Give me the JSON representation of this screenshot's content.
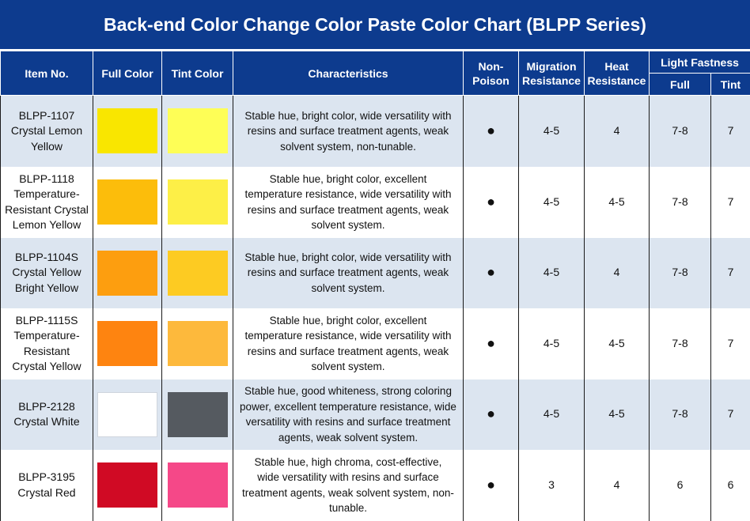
{
  "title": "Back-end Color Change Color Paste Color Chart (BLPP Series)",
  "headers": {
    "item": "Item No.",
    "full_color": "Full Color",
    "tint_color": "Tint Color",
    "characteristics": "Characteristics",
    "non_poison_1": "Non-",
    "non_poison_2": "Poison",
    "migration_1": "Migration",
    "migration_2": "Resistance",
    "heat_1": "Heat",
    "heat_2": "Resistance",
    "light": "Light Fastness",
    "light_full": "Full",
    "light_tint": "Tint"
  },
  "rows": [
    {
      "item_lines": [
        "BLPP-1107",
        "Crystal Lemon",
        "Yellow"
      ],
      "full": "#f9e600",
      "tint": "#fefe56",
      "desc_lines": [
        "Stable hue, bright color, wide versatility with",
        "resins and surface treatment agents, weak",
        "solvent system, non-tunable."
      ],
      "non_poison": "●",
      "migration": "4-5",
      "heat": "4",
      "light_full": "7-8",
      "light_tint": "7"
    },
    {
      "item_lines": [
        "BLPP-1118",
        "Temperature-",
        "Resistant Crystal",
        "Lemon Yellow"
      ],
      "full": "#fcbd0b",
      "tint": "#fdef47",
      "desc_lines": [
        "Stable hue, bright color, excellent",
        "temperature resistance, wide versatility with",
        "resins and surface treatment agents, weak",
        "solvent system."
      ],
      "non_poison": "●",
      "migration": "4-5",
      "heat": "4-5",
      "light_full": "7-8",
      "light_tint": "7"
    },
    {
      "item_lines": [
        "BLPP-1104S",
        "Crystal Yellow",
        "Bright Yellow"
      ],
      "full": "#fd9e0f",
      "tint": "#fdcb22",
      "desc_lines": [
        "Stable hue, bright color, wide versatility with",
        "resins and surface treatment agents, weak",
        "solvent system."
      ],
      "non_poison": "●",
      "migration": "4-5",
      "heat": "4",
      "light_full": "7-8",
      "light_tint": "7"
    },
    {
      "item_lines": [
        "BLPP-1115S",
        "Temperature-",
        "Resistant",
        "Crystal Yellow"
      ],
      "full": "#fe8410",
      "tint": "#fdb93c",
      "desc_lines": [
        "Stable hue, bright color, excellent",
        "temperature resistance, wide versatility with",
        "resins and surface treatment agents, weak",
        "solvent system."
      ],
      "non_poison": "●",
      "migration": "4-5",
      "heat": "4-5",
      "light_full": "7-8",
      "light_tint": "7"
    },
    {
      "item_lines": [
        "BLPP-2128",
        "Crystal White"
      ],
      "full": "#ffffff",
      "tint": "#555a60",
      "desc_lines": [
        "Stable hue, good whiteness, strong coloring",
        "power, excellent temperature resistance, wide",
        "versatility with resins and surface treatment",
        "agents, weak solvent system."
      ],
      "non_poison": "●",
      "migration": "4-5",
      "heat": "4-5",
      "light_full": "7-8",
      "light_tint": "7"
    },
    {
      "item_lines": [
        "BLPP-3195",
        "Crystal Red"
      ],
      "full": "#d00a24",
      "tint": "#f54888",
      "desc_lines": [
        "Stable hue, high chroma, cost-effective,",
        "wide versatility with resins and surface",
        "treatment agents, weak solvent system, non-",
        "tunable."
      ],
      "non_poison": "●",
      "migration": "3",
      "heat": "4",
      "light_full": "6",
      "light_tint": "6"
    }
  ]
}
